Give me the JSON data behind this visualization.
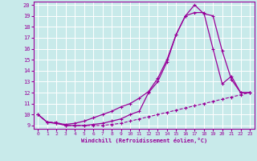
{
  "background_color": "#c8eaea",
  "grid_color": "#ffffff",
  "line_color": "#990099",
  "xlabel": "Windchill (Refroidissement éolien,°C)",
  "xlim": [
    -0.5,
    23.5
  ],
  "ylim": [
    8.7,
    20.3
  ],
  "yticks": [
    9,
    10,
    11,
    12,
    13,
    14,
    15,
    16,
    17,
    18,
    19,
    20
  ],
  "xticks": [
    0,
    1,
    2,
    3,
    4,
    5,
    6,
    7,
    8,
    9,
    10,
    11,
    12,
    13,
    14,
    15,
    16,
    17,
    18,
    19,
    20,
    21,
    22,
    23
  ],
  "series1_x": [
    0,
    1,
    2,
    3,
    4,
    5,
    6,
    7,
    8,
    9,
    10,
    11,
    12,
    13,
    14,
    15,
    16,
    17,
    18,
    19,
    20,
    21,
    22,
    23
  ],
  "series1_y": [
    10.0,
    9.3,
    9.3,
    9.0,
    9.0,
    9.0,
    9.0,
    9.0,
    9.1,
    9.2,
    9.4,
    9.6,
    9.8,
    10.0,
    10.2,
    10.4,
    10.6,
    10.8,
    11.0,
    11.2,
    11.4,
    11.6,
    11.8,
    12.0
  ],
  "series2_x": [
    0,
    1,
    2,
    3,
    4,
    5,
    6,
    7,
    8,
    9,
    10,
    11,
    12,
    13,
    14,
    15,
    16,
    17,
    18,
    19,
    20,
    21,
    22,
    23
  ],
  "series2_y": [
    10.0,
    9.3,
    9.2,
    9.0,
    9.0,
    9.0,
    9.1,
    9.2,
    9.4,
    9.6,
    10.0,
    10.3,
    12.0,
    13.0,
    14.8,
    17.3,
    19.0,
    20.0,
    19.2,
    19.0,
    15.8,
    13.2,
    12.0,
    12.0
  ],
  "series3_x": [
    0,
    1,
    2,
    3,
    4,
    5,
    6,
    7,
    8,
    9,
    10,
    11,
    12,
    13,
    14,
    15,
    16,
    17,
    18,
    19,
    20,
    21,
    22,
    23
  ],
  "series3_y": [
    10.0,
    9.3,
    9.2,
    9.1,
    9.2,
    9.4,
    9.7,
    10.0,
    10.3,
    10.7,
    11.0,
    11.5,
    12.1,
    13.3,
    15.0,
    17.3,
    19.0,
    19.3,
    19.3,
    16.0,
    12.8,
    13.5,
    12.0,
    12.0
  ]
}
